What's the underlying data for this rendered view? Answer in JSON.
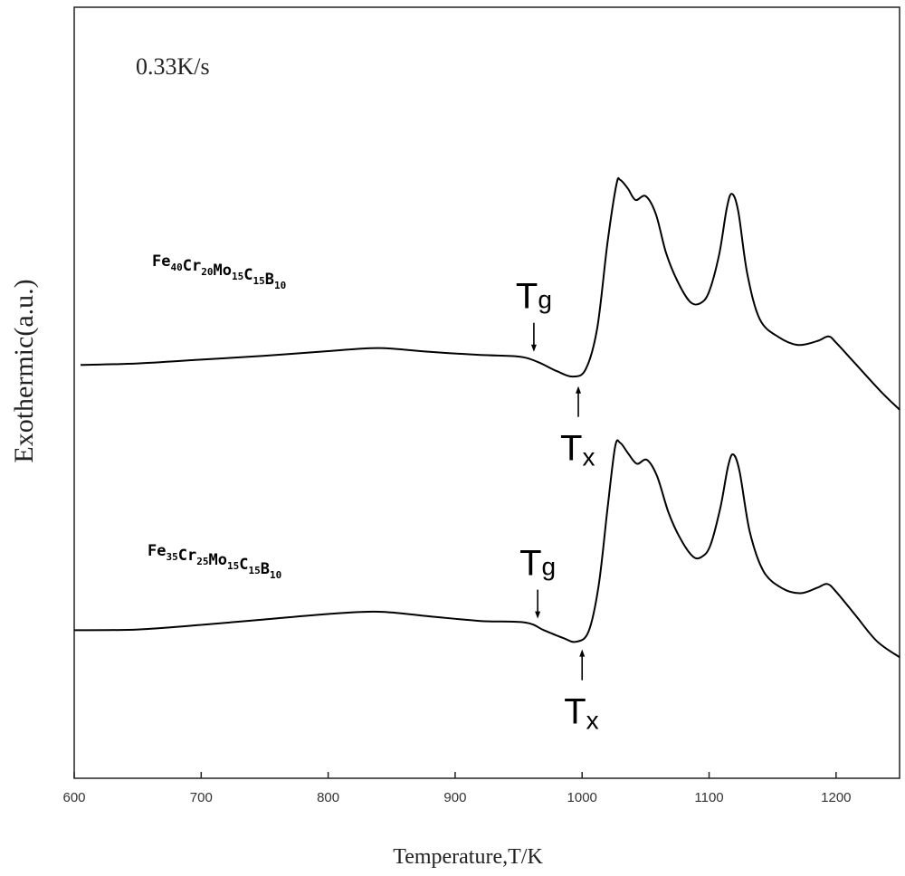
{
  "chart_data": {
    "type": "line",
    "title": "",
    "annotation_rate": "0.33K/s",
    "xlabel": "Temperature,T/K",
    "ylabel": "Exothermic(a.u.)",
    "xlim": [
      600,
      1250
    ],
    "ylim": [
      0,
      10
    ],
    "x_ticks": [
      600,
      700,
      800,
      900,
      1000,
      1100,
      1200
    ],
    "grid": false,
    "y_ticks_shown": false,
    "series": [
      {
        "label_parts": [
          {
            "text": "Fe",
            "sub": "40"
          },
          {
            "text": "Cr",
            "sub": "20"
          },
          {
            "text": "Mo",
            "sub": "15"
          },
          {
            "text": "C",
            "sub": "15"
          },
          {
            "text": "B",
            "sub": "10"
          }
        ],
        "color": "#000000",
        "points": [
          [
            605,
            5.36
          ],
          [
            650,
            5.38
          ],
          [
            700,
            5.43
          ],
          [
            750,
            5.48
          ],
          [
            800,
            5.54
          ],
          [
            840,
            5.58
          ],
          [
            880,
            5.53
          ],
          [
            920,
            5.49
          ],
          [
            950,
            5.47
          ],
          [
            965,
            5.4
          ],
          [
            980,
            5.28
          ],
          [
            993,
            5.21
          ],
          [
            1003,
            5.31
          ],
          [
            1012,
            5.85
          ],
          [
            1020,
            6.95
          ],
          [
            1027,
            7.7
          ],
          [
            1030,
            7.76
          ],
          [
            1036,
            7.65
          ],
          [
            1042,
            7.5
          ],
          [
            1050,
            7.55
          ],
          [
            1058,
            7.32
          ],
          [
            1066,
            6.82
          ],
          [
            1075,
            6.45
          ],
          [
            1085,
            6.18
          ],
          [
            1093,
            6.16
          ],
          [
            1100,
            6.31
          ],
          [
            1108,
            6.8
          ],
          [
            1114,
            7.4
          ],
          [
            1118,
            7.58
          ],
          [
            1123,
            7.35
          ],
          [
            1130,
            6.55
          ],
          [
            1140,
            5.95
          ],
          [
            1155,
            5.72
          ],
          [
            1170,
            5.62
          ],
          [
            1185,
            5.67
          ],
          [
            1194,
            5.73
          ],
          [
            1200,
            5.65
          ],
          [
            1215,
            5.38
          ],
          [
            1235,
            5.02
          ],
          [
            1250,
            4.78
          ]
        ],
        "Tg": {
          "x": 962,
          "label": "T",
          "sub": "g"
        },
        "Tx": {
          "x": 997,
          "label": "T",
          "sub": "x"
        }
      },
      {
        "label_parts": [
          {
            "text": "Fe",
            "sub": "35"
          },
          {
            "text": "Cr",
            "sub": "25"
          },
          {
            "text": "Mo",
            "sub": "15"
          },
          {
            "text": "C",
            "sub": "15"
          },
          {
            "text": "B",
            "sub": "10"
          }
        ],
        "color": "#000000",
        "points": [
          [
            600,
            1.92
          ],
          [
            650,
            1.93
          ],
          [
            700,
            1.99
          ],
          [
            750,
            2.06
          ],
          [
            800,
            2.13
          ],
          [
            840,
            2.16
          ],
          [
            880,
            2.1
          ],
          [
            920,
            2.04
          ],
          [
            955,
            2.02
          ],
          [
            970,
            1.92
          ],
          [
            985,
            1.82
          ],
          [
            995,
            1.77
          ],
          [
            1005,
            1.9
          ],
          [
            1013,
            2.5
          ],
          [
            1020,
            3.5
          ],
          [
            1026,
            4.3
          ],
          [
            1030,
            4.35
          ],
          [
            1036,
            4.22
          ],
          [
            1043,
            4.08
          ],
          [
            1051,
            4.13
          ],
          [
            1059,
            3.92
          ],
          [
            1068,
            3.45
          ],
          [
            1077,
            3.12
          ],
          [
            1087,
            2.88
          ],
          [
            1094,
            2.87
          ],
          [
            1101,
            3.02
          ],
          [
            1109,
            3.52
          ],
          [
            1115,
            4.05
          ],
          [
            1119,
            4.2
          ],
          [
            1124,
            3.98
          ],
          [
            1132,
            3.2
          ],
          [
            1143,
            2.68
          ],
          [
            1158,
            2.46
          ],
          [
            1172,
            2.4
          ],
          [
            1185,
            2.47
          ],
          [
            1193,
            2.52
          ],
          [
            1200,
            2.42
          ],
          [
            1215,
            2.12
          ],
          [
            1232,
            1.78
          ],
          [
            1250,
            1.57
          ]
        ],
        "Tg": {
          "x": 965,
          "label": "T",
          "sub": "g"
        },
        "Tx": {
          "x": 1000,
          "label": "T",
          "sub": "x"
        }
      }
    ]
  }
}
